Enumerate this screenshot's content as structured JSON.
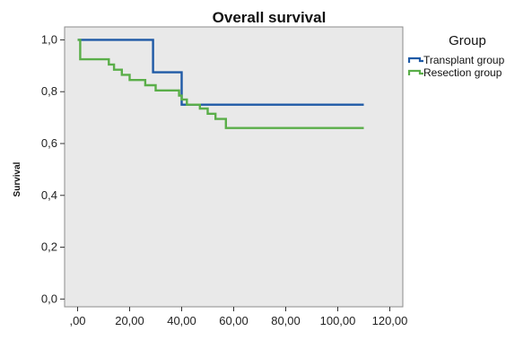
{
  "chart_data": {
    "type": "line",
    "title": "Overall survival",
    "xlabel": "",
    "ylabel": "Survival",
    "xlim": [
      -5,
      125
    ],
    "ylim": [
      -0.03,
      1.05
    ],
    "x_ticks": [
      ",00",
      "20,00",
      "40,00",
      "60,00",
      "80,00",
      "100,00",
      "120,00"
    ],
    "x_tick_values": [
      0,
      20,
      40,
      60,
      80,
      100,
      120
    ],
    "y_ticks": [
      "0,0",
      "0,2",
      "0,4",
      "0,6",
      "0,8",
      "1,0"
    ],
    "y_tick_values": [
      0.0,
      0.2,
      0.4,
      0.6,
      0.8,
      1.0
    ],
    "grid": false,
    "step": true,
    "legend": {
      "title": "Group",
      "position": "right"
    },
    "series": [
      {
        "name": "Transplant group",
        "color": "#1f5aa6",
        "x": [
          0,
          29,
          29,
          40,
          40,
          110
        ],
        "y": [
          1.0,
          1.0,
          0.875,
          0.875,
          0.75,
          0.75
        ]
      },
      {
        "name": "Resection group",
        "color": "#5aae49",
        "x": [
          0,
          1,
          1,
          12,
          12,
          14,
          14,
          17,
          17,
          20,
          20,
          26,
          26,
          30,
          30,
          39,
          39,
          40,
          40,
          42,
          42,
          47,
          47,
          50,
          50,
          53,
          53,
          57,
          57,
          110
        ],
        "y": [
          1.0,
          1.0,
          0.925,
          0.925,
          0.905,
          0.905,
          0.885,
          0.885,
          0.865,
          0.865,
          0.845,
          0.845,
          0.825,
          0.825,
          0.805,
          0.805,
          0.785,
          0.785,
          0.77,
          0.77,
          0.75,
          0.75,
          0.735,
          0.735,
          0.715,
          0.715,
          0.695,
          0.695,
          0.66,
          0.66
        ]
      }
    ]
  }
}
